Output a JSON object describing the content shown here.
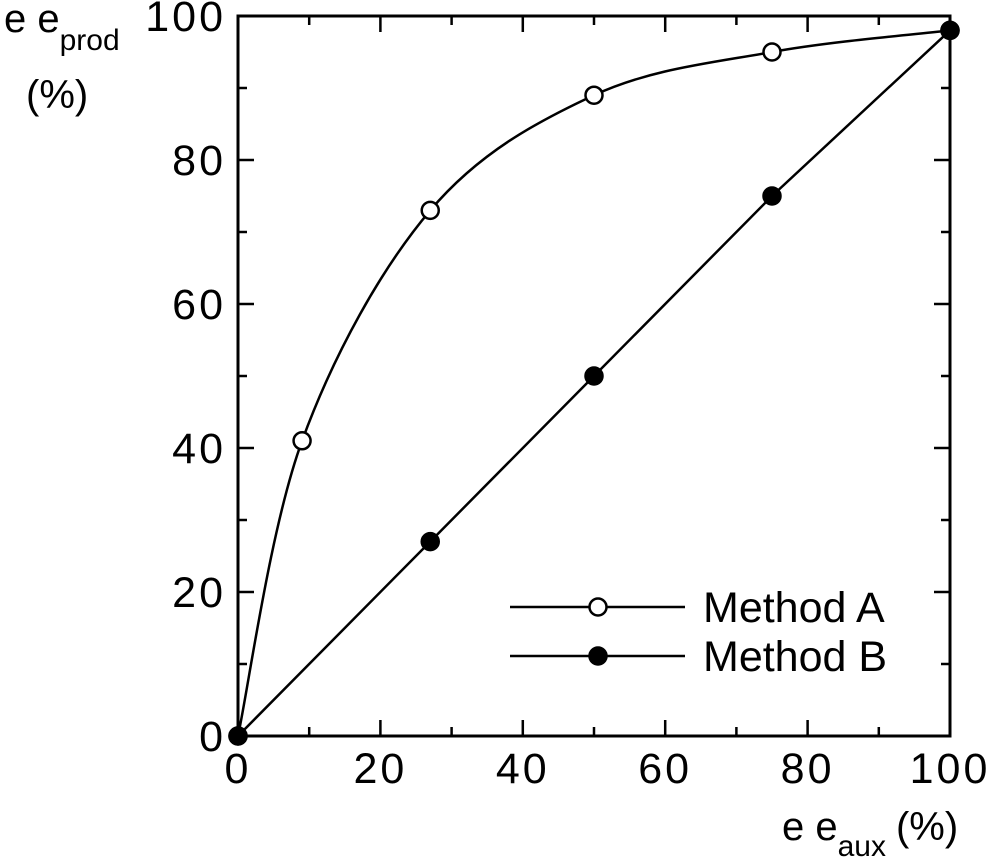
{
  "chart_data": {
    "type": "line",
    "title": "",
    "xlabel": {
      "main": "e e",
      "sub": "aux",
      "unit": "(%)"
    },
    "ylabel": {
      "main": "e e",
      "sub": "prod",
      "unit": "(%)"
    },
    "xlim": [
      0,
      100
    ],
    "ylim": [
      0,
      100
    ],
    "x_ticks": [
      0,
      20,
      40,
      60,
      80,
      100
    ],
    "y_ticks": [
      0,
      20,
      40,
      60,
      80,
      100
    ],
    "grid": false,
    "legend_position": "lower-right",
    "series": [
      {
        "name": "Method A",
        "marker": "open-circle",
        "color": "#000000",
        "points": [
          {
            "x": 0,
            "y": 0
          },
          {
            "x": 9,
            "y": 41
          },
          {
            "x": 27,
            "y": 73
          },
          {
            "x": 50,
            "y": 89
          },
          {
            "x": 75,
            "y": 95
          },
          {
            "x": 100,
            "y": 98
          }
        ]
      },
      {
        "name": "Method B",
        "marker": "filled-circle",
        "color": "#000000",
        "points": [
          {
            "x": 0,
            "y": 0
          },
          {
            "x": 27,
            "y": 27
          },
          {
            "x": 50,
            "y": 50
          },
          {
            "x": 75,
            "y": 75
          },
          {
            "x": 100,
            "y": 98
          }
        ]
      }
    ]
  }
}
